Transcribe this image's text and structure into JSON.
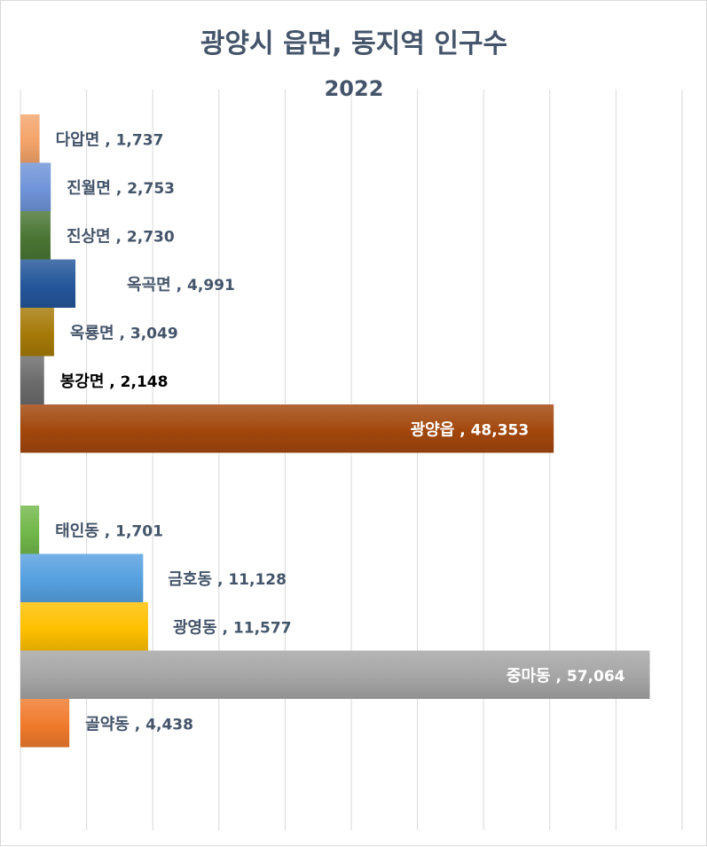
{
  "chart_data": {
    "type": "bar",
    "orientation": "horizontal",
    "title": "광양시 읍면, 동지역 인구수",
    "subtitle": "2022",
    "xlim": [
      0,
      60000
    ],
    "grid": true,
    "legend": "none",
    "groups": [
      {
        "bars": [
          {
            "category": "다압면",
            "value": 1737,
            "value_label": "1,737",
            "color": "#f4a46a"
          },
          {
            "category": "진월면",
            "value": 2753,
            "value_label": "2,753",
            "color": "#6f94d8"
          },
          {
            "category": "진상면",
            "value": 2730,
            "value_label": "2,730",
            "color": "#4a7634"
          },
          {
            "category": "옥곡면",
            "value": 4991,
            "value_label": "4,991",
            "color": "#24569a"
          },
          {
            "category": "옥룡면",
            "value": 3049,
            "value_label": "3,049",
            "color": "#a57a08"
          },
          {
            "category": "봉강면",
            "value": 2148,
            "value_label": "2,148",
            "color": "#6b6b6b"
          },
          {
            "category": "광양읍",
            "value": 48353,
            "value_label": "48,353",
            "color": "#a2470c"
          }
        ]
      },
      {
        "bars": [
          {
            "category": "태인동",
            "value": 1701,
            "value_label": "1,701",
            "color": "#72b84a"
          },
          {
            "category": "금호동",
            "value": 11128,
            "value_label": "11,128",
            "color": "#56a0e0"
          },
          {
            "category": "광영동",
            "value": 11577,
            "value_label": "11,577",
            "color": "#ffc000"
          },
          {
            "category": "중마동",
            "value": 57064,
            "value_label": "57,064",
            "color": "#a5a5a5"
          },
          {
            "category": "골약동",
            "value": 4438,
            "value_label": "4,438",
            "color": "#f07a2c"
          }
        ]
      }
    ],
    "label_color": "#44546a",
    "label_color_highlight": "#000000",
    "label_color_inside": "#ffffff"
  }
}
